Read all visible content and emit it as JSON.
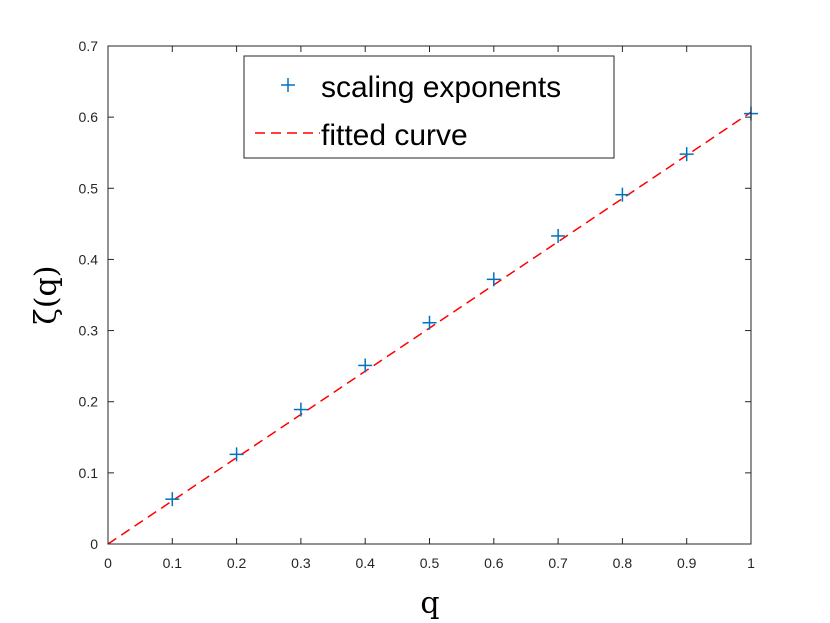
{
  "chart_data": {
    "type": "scatter",
    "xlabel": "q",
    "ylabel": "ζ(q)",
    "xlim": [
      0,
      1
    ],
    "ylim": [
      0,
      0.7
    ],
    "xticks": [
      "0",
      "0.1",
      "0.2",
      "0.3",
      "0.4",
      "0.5",
      "0.6",
      "0.7",
      "0.8",
      "0.9",
      "1"
    ],
    "yticks": [
      "0",
      "0.1",
      "0.2",
      "0.3",
      "0.4",
      "0.5",
      "0.6",
      "0.7"
    ],
    "grid": false,
    "legend_position": "top-center",
    "series": [
      {
        "name": "scaling exponents",
        "marker": "plus",
        "color": "#0072BD",
        "x": [
          0.1,
          0.2,
          0.3,
          0.4,
          0.5,
          0.6,
          0.7,
          0.8,
          0.9,
          1.0
        ],
        "y": [
          0.063,
          0.126,
          0.189,
          0.251,
          0.311,
          0.372,
          0.433,
          0.491,
          0.548,
          0.605
        ]
      },
      {
        "name": "fitted curve",
        "style": "dashed",
        "color": "#FF0000",
        "x": [
          0,
          1
        ],
        "y": [
          0,
          0.607
        ]
      }
    ]
  }
}
